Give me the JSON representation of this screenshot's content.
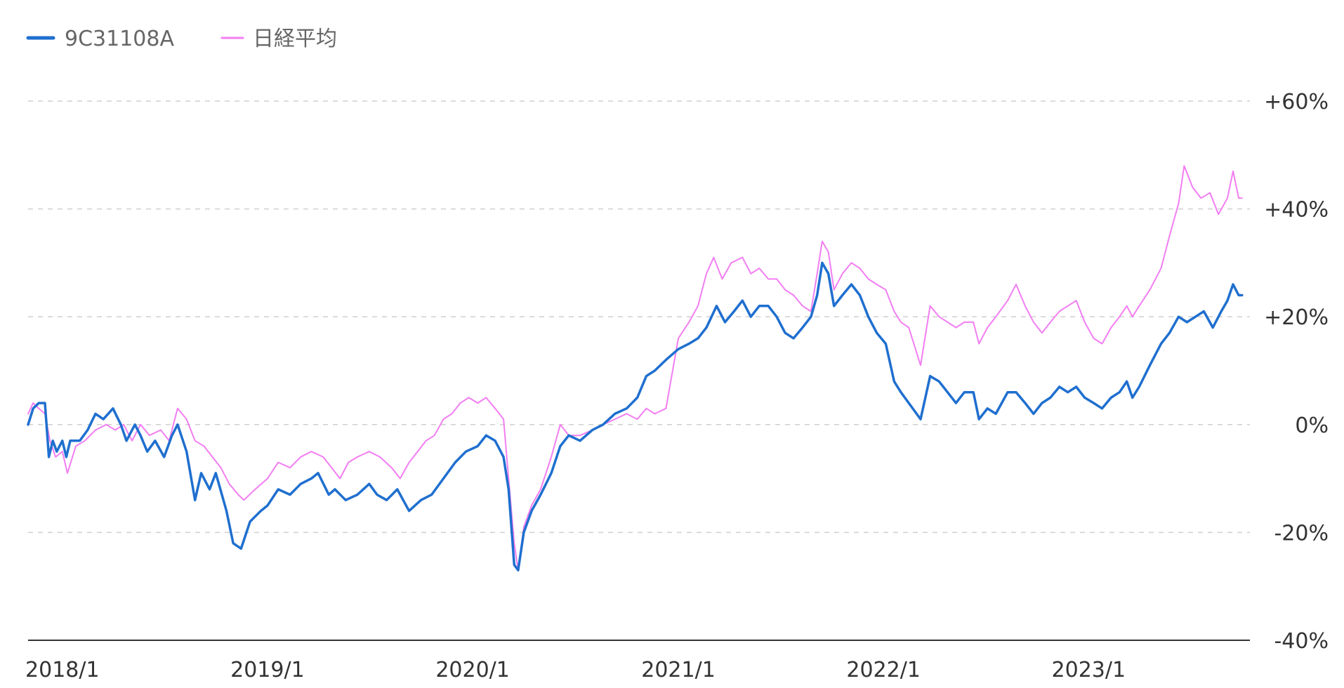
{
  "chart_data": {
    "type": "line",
    "title": "",
    "xlabel": "",
    "ylabel": "",
    "ylim": [
      -40,
      60
    ],
    "xlim": [
      "2017-11-01",
      "2023-10-15"
    ],
    "y_axis_position": "right",
    "grid": true,
    "legend_position": "top-left",
    "y_ticks": [
      60,
      40,
      20,
      0,
      -20,
      -40
    ],
    "y_tick_labels": [
      "+60%",
      "+40%",
      "+20%",
      "0%",
      "-20%",
      "-40%"
    ],
    "x_ticks": [
      "2018-01-01",
      "2019-01-01",
      "2020-01-01",
      "2021-01-01",
      "2022-01-01",
      "2023-01-01"
    ],
    "x_tick_labels": [
      "2018/1",
      "2019/1",
      "2020/1",
      "2021/1",
      "2022/1",
      "2023/1"
    ],
    "series": [
      {
        "name": "9C31108A",
        "color": "#1f6fcf",
        "stroke_width": 3.5,
        "points": [
          [
            "2017-11-01",
            0
          ],
          [
            "2017-11-10",
            3
          ],
          [
            "2017-11-20",
            4
          ],
          [
            "2017-12-01",
            4
          ],
          [
            "2017-12-08",
            -6
          ],
          [
            "2017-12-15",
            -3
          ],
          [
            "2017-12-22",
            -5
          ],
          [
            "2018-01-01",
            -3
          ],
          [
            "2018-01-08",
            -6
          ],
          [
            "2018-01-15",
            -3
          ],
          [
            "2018-02-01",
            -3
          ],
          [
            "2018-02-15",
            -1
          ],
          [
            "2018-03-01",
            2
          ],
          [
            "2018-03-15",
            1
          ],
          [
            "2018-04-01",
            3
          ],
          [
            "2018-04-15",
            0
          ],
          [
            "2018-04-25",
            -3
          ],
          [
            "2018-05-10",
            0
          ],
          [
            "2018-05-20",
            -2
          ],
          [
            "2018-06-01",
            -5
          ],
          [
            "2018-06-15",
            -3
          ],
          [
            "2018-07-01",
            -6
          ],
          [
            "2018-07-15",
            -2
          ],
          [
            "2018-07-25",
            0
          ],
          [
            "2018-08-10",
            -5
          ],
          [
            "2018-08-25",
            -14
          ],
          [
            "2018-09-05",
            -9
          ],
          [
            "2018-09-20",
            -12
          ],
          [
            "2018-10-01",
            -9
          ],
          [
            "2018-10-20",
            -16
          ],
          [
            "2018-11-01",
            -22
          ],
          [
            "2018-11-15",
            -23
          ],
          [
            "2018-12-01",
            -18
          ],
          [
            "2018-12-20",
            -16
          ],
          [
            "2019-01-01",
            -15
          ],
          [
            "2019-01-20",
            -12
          ],
          [
            "2019-02-10",
            -13
          ],
          [
            "2019-03-01",
            -11
          ],
          [
            "2019-03-20",
            -10
          ],
          [
            "2019-04-01",
            -9
          ],
          [
            "2019-04-20",
            -13
          ],
          [
            "2019-05-01",
            -12
          ],
          [
            "2019-05-20",
            -14
          ],
          [
            "2019-06-10",
            -13
          ],
          [
            "2019-07-01",
            -11
          ],
          [
            "2019-07-15",
            -13
          ],
          [
            "2019-08-01",
            -14
          ],
          [
            "2019-08-20",
            -12
          ],
          [
            "2019-09-10",
            -16
          ],
          [
            "2019-10-01",
            -14
          ],
          [
            "2019-10-20",
            -13
          ],
          [
            "2019-11-10",
            -10
          ],
          [
            "2019-12-01",
            -7
          ],
          [
            "2019-12-20",
            -5
          ],
          [
            "2020-01-10",
            -4
          ],
          [
            "2020-01-25",
            -2
          ],
          [
            "2020-02-10",
            -3
          ],
          [
            "2020-02-25",
            -6
          ],
          [
            "2020-03-05",
            -12
          ],
          [
            "2020-03-15",
            -26
          ],
          [
            "2020-03-22",
            -27
          ],
          [
            "2020-04-01",
            -20
          ],
          [
            "2020-04-15",
            -16
          ],
          [
            "2020-05-01",
            -13
          ],
          [
            "2020-05-20",
            -9
          ],
          [
            "2020-06-05",
            -4
          ],
          [
            "2020-06-20",
            -2
          ],
          [
            "2020-07-10",
            -3
          ],
          [
            "2020-08-01",
            -1
          ],
          [
            "2020-08-20",
            0
          ],
          [
            "2020-09-10",
            2
          ],
          [
            "2020-10-01",
            3
          ],
          [
            "2020-10-20",
            5
          ],
          [
            "2020-11-05",
            9
          ],
          [
            "2020-11-20",
            10
          ],
          [
            "2020-12-10",
            12
          ],
          [
            "2021-01-01",
            14
          ],
          [
            "2021-01-20",
            15
          ],
          [
            "2021-02-05",
            16
          ],
          [
            "2021-02-20",
            18
          ],
          [
            "2021-03-10",
            22
          ],
          [
            "2021-03-25",
            19
          ],
          [
            "2021-04-10",
            21
          ],
          [
            "2021-04-25",
            23
          ],
          [
            "2021-05-10",
            20
          ],
          [
            "2021-05-25",
            22
          ],
          [
            "2021-06-10",
            22
          ],
          [
            "2021-06-25",
            20
          ],
          [
            "2021-07-10",
            17
          ],
          [
            "2021-07-25",
            16
          ],
          [
            "2021-08-10",
            18
          ],
          [
            "2021-08-25",
            20
          ],
          [
            "2021-09-05",
            24
          ],
          [
            "2021-09-14",
            30
          ],
          [
            "2021-09-25",
            28
          ],
          [
            "2021-10-05",
            22
          ],
          [
            "2021-10-20",
            24
          ],
          [
            "2021-11-05",
            26
          ],
          [
            "2021-11-20",
            24
          ],
          [
            "2021-12-05",
            20
          ],
          [
            "2021-12-20",
            17
          ],
          [
            "2022-01-05",
            15
          ],
          [
            "2022-01-20",
            8
          ],
          [
            "2022-02-01",
            6
          ],
          [
            "2022-02-15",
            4
          ],
          [
            "2022-03-08",
            1
          ],
          [
            "2022-03-25",
            9
          ],
          [
            "2022-04-10",
            8
          ],
          [
            "2022-04-25",
            6
          ],
          [
            "2022-05-10",
            4
          ],
          [
            "2022-05-25",
            6
          ],
          [
            "2022-06-10",
            6
          ],
          [
            "2022-06-20",
            1
          ],
          [
            "2022-07-05",
            3
          ],
          [
            "2022-07-20",
            2
          ],
          [
            "2022-08-10",
            6
          ],
          [
            "2022-08-25",
            6
          ],
          [
            "2022-09-10",
            4
          ],
          [
            "2022-09-25",
            2
          ],
          [
            "2022-10-10",
            4
          ],
          [
            "2022-10-25",
            5
          ],
          [
            "2022-11-10",
            7
          ],
          [
            "2022-11-25",
            6
          ],
          [
            "2022-12-10",
            7
          ],
          [
            "2022-12-25",
            5
          ],
          [
            "2023-01-10",
            4
          ],
          [
            "2023-01-25",
            3
          ],
          [
            "2023-02-10",
            5
          ],
          [
            "2023-02-25",
            6
          ],
          [
            "2023-03-10",
            8
          ],
          [
            "2023-03-20",
            5
          ],
          [
            "2023-04-01",
            7
          ],
          [
            "2023-04-20",
            11
          ],
          [
            "2023-05-10",
            15
          ],
          [
            "2023-05-25",
            17
          ],
          [
            "2023-06-10",
            20
          ],
          [
            "2023-06-25",
            19
          ],
          [
            "2023-07-10",
            20
          ],
          [
            "2023-07-25",
            21
          ],
          [
            "2023-08-10",
            18
          ],
          [
            "2023-08-25",
            21
          ],
          [
            "2023-09-05",
            23
          ],
          [
            "2023-09-15",
            26
          ],
          [
            "2023-09-25",
            24
          ],
          [
            "2023-10-01",
            24
          ]
        ]
      },
      {
        "name": "日経平均",
        "color": "#f27ef2",
        "stroke_width": 2,
        "points": [
          [
            "2017-11-01",
            2
          ],
          [
            "2017-11-10",
            4
          ],
          [
            "2017-11-20",
            3
          ],
          [
            "2017-12-01",
            2
          ],
          [
            "2017-12-10",
            -3
          ],
          [
            "2017-12-20",
            -6
          ],
          [
            "2018-01-01",
            -5
          ],
          [
            "2018-01-10",
            -9
          ],
          [
            "2018-01-25",
            -4
          ],
          [
            "2018-02-10",
            -3
          ],
          [
            "2018-03-01",
            -1
          ],
          [
            "2018-03-20",
            0
          ],
          [
            "2018-04-05",
            -1
          ],
          [
            "2018-04-20",
            0
          ],
          [
            "2018-05-05",
            -3
          ],
          [
            "2018-05-20",
            0
          ],
          [
            "2018-06-05",
            -2
          ],
          [
            "2018-06-25",
            -1
          ],
          [
            "2018-07-10",
            -3
          ],
          [
            "2018-07-25",
            3
          ],
          [
            "2018-08-10",
            1
          ],
          [
            "2018-08-25",
            -3
          ],
          [
            "2018-09-10",
            -4
          ],
          [
            "2018-09-25",
            -6
          ],
          [
            "2018-10-10",
            -8
          ],
          [
            "2018-10-25",
            -11
          ],
          [
            "2018-11-10",
            -13
          ],
          [
            "2018-11-20",
            -14
          ],
          [
            "2018-12-10",
            -12
          ],
          [
            "2019-01-01",
            -10
          ],
          [
            "2019-01-20",
            -7
          ],
          [
            "2019-02-10",
            -8
          ],
          [
            "2019-03-01",
            -6
          ],
          [
            "2019-03-20",
            -5
          ],
          [
            "2019-04-10",
            -6
          ],
          [
            "2019-04-25",
            -8
          ],
          [
            "2019-05-10",
            -10
          ],
          [
            "2019-05-25",
            -7
          ],
          [
            "2019-06-10",
            -6
          ],
          [
            "2019-07-01",
            -5
          ],
          [
            "2019-07-20",
            -6
          ],
          [
            "2019-08-10",
            -8
          ],
          [
            "2019-08-25",
            -10
          ],
          [
            "2019-09-10",
            -7
          ],
          [
            "2019-09-25",
            -5
          ],
          [
            "2019-10-10",
            -3
          ],
          [
            "2019-10-25",
            -2
          ],
          [
            "2019-11-10",
            1
          ],
          [
            "2019-11-25",
            2
          ],
          [
            "2019-12-10",
            4
          ],
          [
            "2019-12-25",
            5
          ],
          [
            "2020-01-10",
            4
          ],
          [
            "2020-01-25",
            5
          ],
          [
            "2020-02-10",
            3
          ],
          [
            "2020-02-25",
            1
          ],
          [
            "2020-03-05",
            -10
          ],
          [
            "2020-03-15",
            -22
          ],
          [
            "2020-03-22",
            -27
          ],
          [
            "2020-04-01",
            -19
          ],
          [
            "2020-04-15",
            -15
          ],
          [
            "2020-05-01",
            -12
          ],
          [
            "2020-05-20",
            -6
          ],
          [
            "2020-06-05",
            0
          ],
          [
            "2020-06-20",
            -2
          ],
          [
            "2020-07-10",
            -2
          ],
          [
            "2020-08-01",
            -1
          ],
          [
            "2020-08-20",
            0
          ],
          [
            "2020-09-10",
            1
          ],
          [
            "2020-10-01",
            2
          ],
          [
            "2020-10-20",
            1
          ],
          [
            "2020-11-05",
            3
          ],
          [
            "2020-11-20",
            2
          ],
          [
            "2020-12-10",
            3
          ],
          [
            "2021-01-01",
            16
          ],
          [
            "2021-01-20",
            19
          ],
          [
            "2021-02-05",
            22
          ],
          [
            "2021-02-20",
            28
          ],
          [
            "2021-03-05",
            31
          ],
          [
            "2021-03-20",
            27
          ],
          [
            "2021-04-05",
            30
          ],
          [
            "2021-04-25",
            31
          ],
          [
            "2021-05-10",
            28
          ],
          [
            "2021-05-25",
            29
          ],
          [
            "2021-06-10",
            27
          ],
          [
            "2021-06-25",
            27
          ],
          [
            "2021-07-10",
            25
          ],
          [
            "2021-07-25",
            24
          ],
          [
            "2021-08-10",
            22
          ],
          [
            "2021-08-25",
            21
          ],
          [
            "2021-09-05",
            28
          ],
          [
            "2021-09-14",
            34
          ],
          [
            "2021-09-25",
            32
          ],
          [
            "2021-10-05",
            25
          ],
          [
            "2021-10-20",
            28
          ],
          [
            "2021-11-05",
            30
          ],
          [
            "2021-11-20",
            29
          ],
          [
            "2021-12-05",
            27
          ],
          [
            "2021-12-20",
            26
          ],
          [
            "2022-01-05",
            25
          ],
          [
            "2022-01-20",
            21
          ],
          [
            "2022-02-01",
            19
          ],
          [
            "2022-02-15",
            18
          ],
          [
            "2022-03-08",
            11
          ],
          [
            "2022-03-25",
            22
          ],
          [
            "2022-04-10",
            20
          ],
          [
            "2022-04-25",
            19
          ],
          [
            "2022-05-10",
            18
          ],
          [
            "2022-05-25",
            19
          ],
          [
            "2022-06-10",
            19
          ],
          [
            "2022-06-20",
            15
          ],
          [
            "2022-07-05",
            18
          ],
          [
            "2022-07-20",
            20
          ],
          [
            "2022-08-10",
            23
          ],
          [
            "2022-08-25",
            26
          ],
          [
            "2022-09-10",
            22
          ],
          [
            "2022-09-25",
            19
          ],
          [
            "2022-10-10",
            17
          ],
          [
            "2022-10-25",
            19
          ],
          [
            "2022-11-10",
            21
          ],
          [
            "2022-11-25",
            22
          ],
          [
            "2022-12-10",
            23
          ],
          [
            "2022-12-25",
            19
          ],
          [
            "2023-01-10",
            16
          ],
          [
            "2023-01-25",
            15
          ],
          [
            "2023-02-10",
            18
          ],
          [
            "2023-02-25",
            20
          ],
          [
            "2023-03-10",
            22
          ],
          [
            "2023-03-20",
            20
          ],
          [
            "2023-04-01",
            22
          ],
          [
            "2023-04-20",
            25
          ],
          [
            "2023-05-10",
            29
          ],
          [
            "2023-05-25",
            35
          ],
          [
            "2023-06-10",
            41
          ],
          [
            "2023-06-20",
            48
          ],
          [
            "2023-07-05",
            44
          ],
          [
            "2023-07-20",
            42
          ],
          [
            "2023-08-05",
            43
          ],
          [
            "2023-08-20",
            39
          ],
          [
            "2023-09-05",
            42
          ],
          [
            "2023-09-15",
            47
          ],
          [
            "2023-09-25",
            42
          ],
          [
            "2023-10-01",
            42
          ]
        ]
      }
    ]
  }
}
